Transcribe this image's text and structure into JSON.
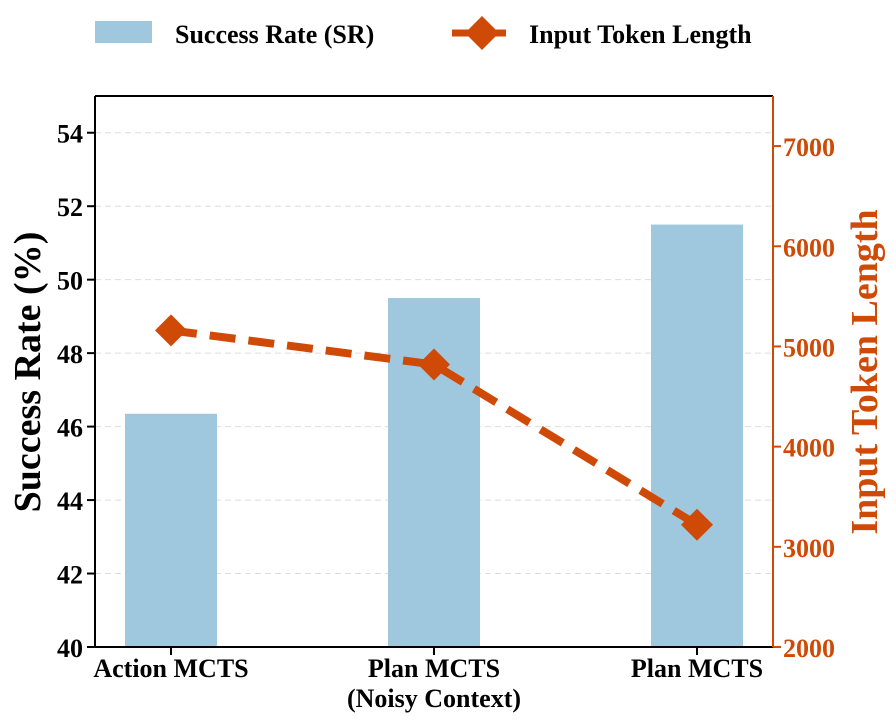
{
  "chart_data": {
    "type": "bar+line",
    "categories": [
      "Action MCTS",
      "Plan MCTS\n(Noisy Context)",
      "Plan MCTS"
    ],
    "series": [
      {
        "name": "Success Rate (SR)",
        "type": "bar",
        "axis": "left",
        "values": [
          46.35,
          49.5,
          51.5
        ],
        "color": "#9fc8de"
      },
      {
        "name": "Input Token Length",
        "type": "line",
        "axis": "right",
        "values": [
          5160,
          4820,
          3220
        ],
        "color": "#d04a07",
        "marker": "diamond",
        "line_style": "dashed"
      }
    ],
    "ylabel": "Success Rate (%)",
    "ylim": [
      40,
      55
    ],
    "yticks": [
      40,
      42,
      44,
      46,
      48,
      50,
      52,
      54
    ],
    "y2label": "Input Token Length",
    "y2lim": [
      2000,
      7500
    ],
    "y2ticks": [
      2000,
      3000,
      4000,
      5000,
      6000,
      7000
    ],
    "y2_color": "#d04a07",
    "grid": "horizontal dashed",
    "legend_position": "top"
  }
}
